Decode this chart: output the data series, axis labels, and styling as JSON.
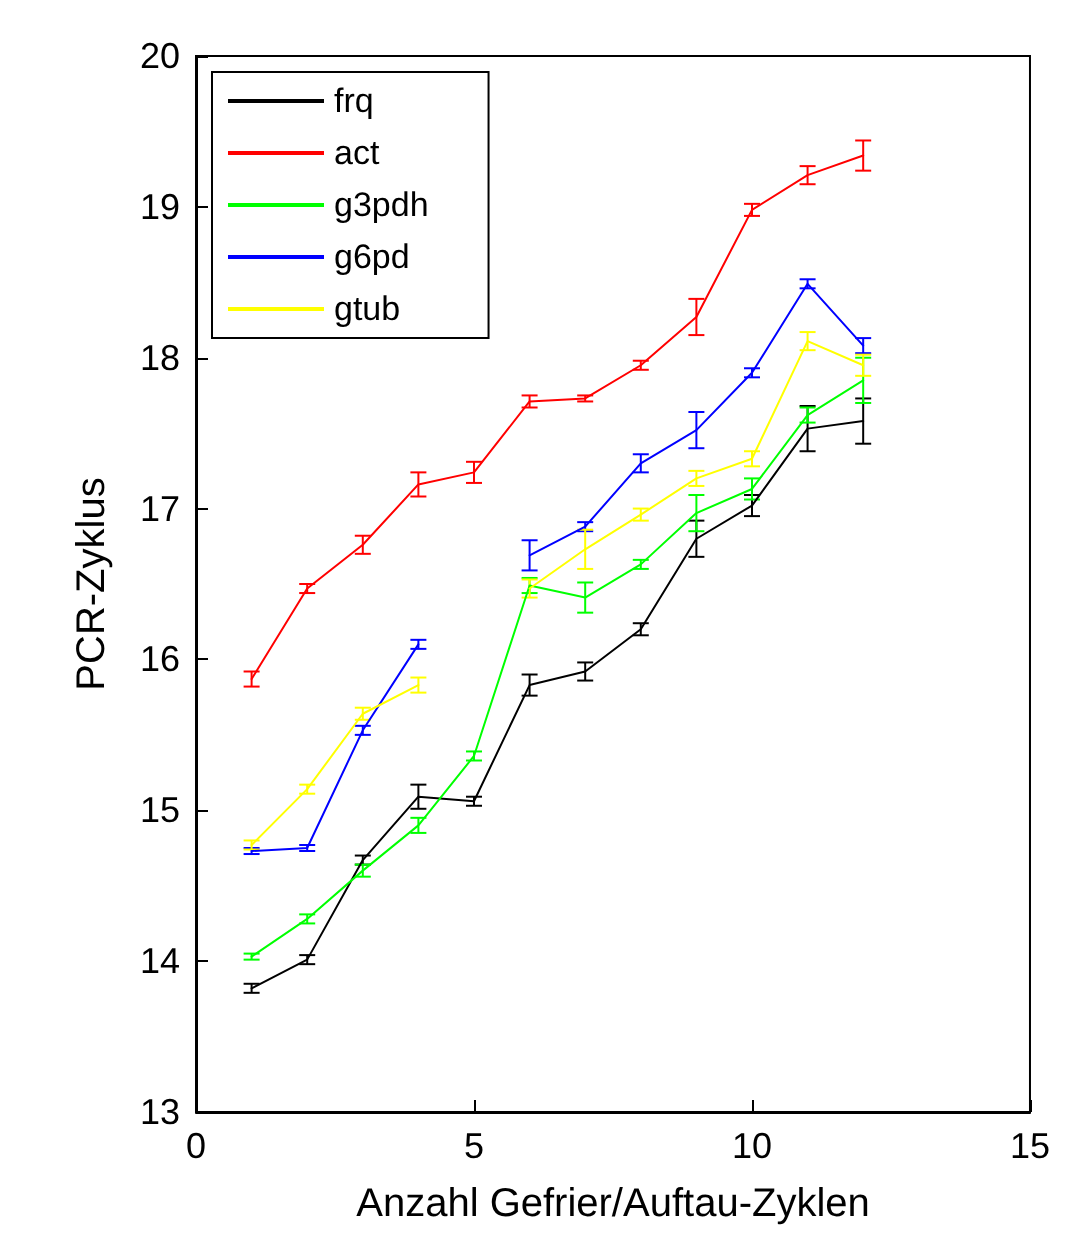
{
  "chart_data": {
    "type": "line",
    "xlabel": "Anzahl Gefrier/Auftau-Zyklen",
    "ylabel": "PCR-Zyklus",
    "x": [
      1,
      2,
      3,
      4,
      5,
      6,
      7,
      8,
      9,
      10,
      11,
      12
    ],
    "series": [
      {
        "name": "frq",
        "color": "#000000",
        "values": [
          13.82,
          14.01,
          14.67,
          15.09,
          15.06,
          15.83,
          15.92,
          16.2,
          16.8,
          17.02,
          17.53,
          17.58
        ],
        "errors": [
          0.03,
          0.03,
          0.03,
          0.08,
          0.03,
          0.07,
          0.06,
          0.04,
          0.12,
          0.07,
          0.15,
          0.15
        ]
      },
      {
        "name": "act",
        "color": "#ff0000",
        "values": [
          15.87,
          16.47,
          16.76,
          17.16,
          17.24,
          17.71,
          17.73,
          17.95,
          18.27,
          18.98,
          19.21,
          19.34
        ],
        "errors": [
          0.05,
          0.03,
          0.06,
          0.08,
          0.07,
          0.04,
          0.02,
          0.03,
          0.12,
          0.04,
          0.06,
          0.1
        ]
      },
      {
        "name": "g3pdh",
        "color": "#00ff00",
        "values": [
          14.03,
          14.28,
          14.6,
          14.9,
          15.36,
          16.49,
          16.41,
          16.63,
          16.97,
          17.13,
          17.62,
          17.85
        ],
        "errors": [
          0.02,
          0.03,
          0.04,
          0.05,
          0.03,
          0.05,
          0.1,
          0.03,
          0.12,
          0.07,
          0.05,
          0.15
        ]
      },
      {
        "name": "g6pd",
        "color": "#0000ff",
        "values": [
          14.73,
          14.75,
          15.53,
          16.1,
          null,
          16.69,
          16.88,
          17.3,
          17.52,
          17.9,
          18.49,
          18.08
        ],
        "errors": [
          0.02,
          0.02,
          0.03,
          0.03,
          null,
          0.1,
          0.03,
          0.06,
          0.12,
          0.03,
          0.03,
          0.05
        ]
      },
      {
        "name": "gtub",
        "color": "#ffff00",
        "values": [
          14.77,
          15.14,
          15.64,
          15.83,
          null,
          16.47,
          16.73,
          16.96,
          17.2,
          17.33,
          18.11,
          17.95
        ],
        "errors": [
          0.03,
          0.03,
          0.04,
          0.05,
          null,
          0.06,
          0.13,
          0.04,
          0.05,
          0.05,
          0.06,
          0.07
        ]
      }
    ],
    "xlim": [
      0,
      15
    ],
    "xticks": [
      0,
      5,
      10,
      15
    ],
    "ylim": [
      13,
      20
    ],
    "yticks": [
      13,
      14,
      15,
      16,
      17,
      18,
      19,
      20
    ],
    "grid": false,
    "legend": "top left",
    "marker": "none",
    "line_style": "solid"
  }
}
